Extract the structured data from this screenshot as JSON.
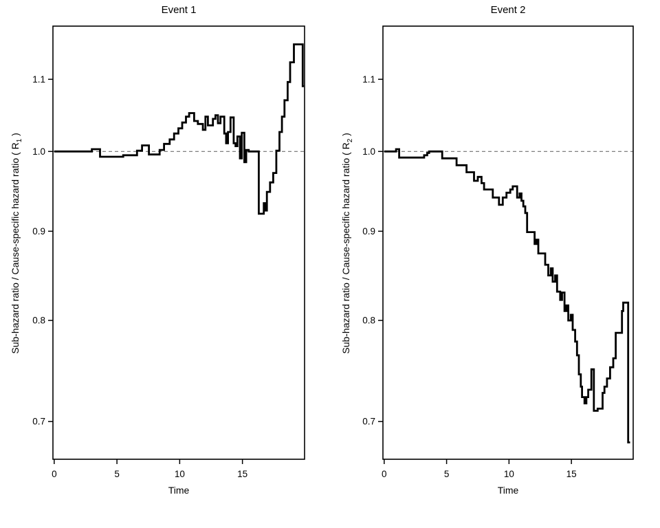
{
  "figure": {
    "background": "#ffffff",
    "curve_color": "#000000",
    "axis_color": "#000000",
    "reference_line_color": "#6e6e6e"
  },
  "chart_data": [
    {
      "type": "line",
      "step": true,
      "title": "Event 1",
      "xlabel": "Time",
      "ylabel": "Sub-hazard ratio / Cause-specific hazard ratio ( R1 )",
      "ylabel_parts": {
        "prefix": "Sub-hazard ratio / Cause-specific hazard ratio ( R",
        "sub": "1",
        "suffix": " )"
      },
      "yscale": "log",
      "grid": false,
      "legend": null,
      "xlim": [
        -0.1,
        19.95
      ],
      "ylim": [
        0.666,
        1.18
      ],
      "xticks": [
        0,
        5,
        10,
        15
      ],
      "yticks": [
        0.7,
        0.8,
        0.9,
        1.0,
        1.1
      ],
      "reference_y": 1.0,
      "x_end": 19.9,
      "points": [
        [
          0,
          1.0
        ],
        [
          3.0,
          1.003
        ],
        [
          3.65,
          0.993
        ],
        [
          5.5,
          0.995
        ],
        [
          6.6,
          1.001
        ],
        [
          7.0,
          1.008
        ],
        [
          7.55,
          0.996
        ],
        [
          8.4,
          1.002
        ],
        [
          8.75,
          1.01
        ],
        [
          9.2,
          1.016
        ],
        [
          9.55,
          1.024
        ],
        [
          9.9,
          1.031
        ],
        [
          10.2,
          1.039
        ],
        [
          10.5,
          1.047
        ],
        [
          10.75,
          1.052
        ],
        [
          11.15,
          1.041
        ],
        [
          11.45,
          1.037
        ],
        [
          11.85,
          1.029
        ],
        [
          12.05,
          1.047
        ],
        [
          12.25,
          1.035
        ],
        [
          12.65,
          1.044
        ],
        [
          12.85,
          1.049
        ],
        [
          13.05,
          1.038
        ],
        [
          13.25,
          1.047
        ],
        [
          13.55,
          1.024
        ],
        [
          13.7,
          1.011
        ],
        [
          13.85,
          1.026
        ],
        [
          14.05,
          1.046
        ],
        [
          14.3,
          1.011
        ],
        [
          14.45,
          1.007
        ],
        [
          14.6,
          1.02
        ],
        [
          14.8,
          0.991
        ],
        [
          14.95,
          1.025
        ],
        [
          15.15,
          0.986
        ],
        [
          15.3,
          1.002
        ],
        [
          15.5,
          1.0
        ],
        [
          16.3,
          0.921
        ],
        [
          16.7,
          0.934
        ],
        [
          16.85,
          0.925
        ],
        [
          16.95,
          0.948
        ],
        [
          17.2,
          0.96
        ],
        [
          17.45,
          0.972
        ],
        [
          17.7,
          1.001
        ],
        [
          17.95,
          1.026
        ],
        [
          18.15,
          1.047
        ],
        [
          18.35,
          1.07
        ],
        [
          18.6,
          1.096
        ],
        [
          18.8,
          1.125
        ],
        [
          19.1,
          1.152
        ],
        [
          19.8,
          1.09
        ]
      ]
    },
    {
      "type": "line",
      "step": true,
      "title": "Event 2",
      "xlabel": "Time",
      "ylabel": "Sub-hazard ratio / Cause-specific hazard ratio ( R2 )",
      "ylabel_parts": {
        "prefix": "Sub-hazard ratio / Cause-specific hazard ratio ( R",
        "sub": "2",
        "suffix": " )"
      },
      "yscale": "log",
      "grid": false,
      "legend": null,
      "xlim": [
        -0.1,
        19.95
      ],
      "ylim": [
        0.666,
        1.18
      ],
      "xticks": [
        0,
        5,
        10,
        15
      ],
      "yticks": [
        0.7,
        0.8,
        0.9,
        1.0,
        1.1
      ],
      "reference_y": 1.0,
      "x_end": 19.7,
      "points": [
        [
          0,
          1.0
        ],
        [
          0.95,
          1.003
        ],
        [
          1.2,
          0.992
        ],
        [
          3.2,
          0.995
        ],
        [
          3.45,
          0.998
        ],
        [
          3.6,
          1.0
        ],
        [
          4.65,
          0.991
        ],
        [
          5.8,
          0.982
        ],
        [
          6.6,
          0.973
        ],
        [
          7.2,
          0.962
        ],
        [
          7.5,
          0.967
        ],
        [
          7.8,
          0.959
        ],
        [
          8.0,
          0.951
        ],
        [
          8.7,
          0.941
        ],
        [
          9.2,
          0.932
        ],
        [
          9.5,
          0.941
        ],
        [
          9.8,
          0.947
        ],
        [
          10.1,
          0.951
        ],
        [
          10.3,
          0.955
        ],
        [
          10.65,
          0.941
        ],
        [
          10.85,
          0.946
        ],
        [
          11.0,
          0.937
        ],
        [
          11.15,
          0.93
        ],
        [
          11.3,
          0.922
        ],
        [
          11.45,
          0.899
        ],
        [
          12.05,
          0.885
        ],
        [
          12.2,
          0.89
        ],
        [
          12.35,
          0.874
        ],
        [
          12.9,
          0.861
        ],
        [
          13.15,
          0.849
        ],
        [
          13.35,
          0.857
        ],
        [
          13.5,
          0.842
        ],
        [
          13.7,
          0.849
        ],
        [
          13.85,
          0.831
        ],
        [
          14.1,
          0.822
        ],
        [
          14.25,
          0.83
        ],
        [
          14.45,
          0.81
        ],
        [
          14.6,
          0.816
        ],
        [
          14.75,
          0.8
        ],
        [
          14.95,
          0.806
        ],
        [
          15.1,
          0.79
        ],
        [
          15.3,
          0.778
        ],
        [
          15.45,
          0.764
        ],
        [
          15.6,
          0.745
        ],
        [
          15.75,
          0.733
        ],
        [
          15.85,
          0.723
        ],
        [
          16.05,
          0.717
        ],
        [
          16.2,
          0.723
        ],
        [
          16.35,
          0.73
        ],
        [
          16.6,
          0.75
        ],
        [
          16.8,
          0.71
        ],
        [
          17.1,
          0.712
        ],
        [
          17.5,
          0.727
        ],
        [
          17.65,
          0.733
        ],
        [
          17.85,
          0.741
        ],
        [
          18.1,
          0.752
        ],
        [
          18.35,
          0.761
        ],
        [
          18.55,
          0.787
        ],
        [
          19.05,
          0.81
        ],
        [
          19.15,
          0.819
        ],
        [
          19.55,
          0.681
        ]
      ]
    }
  ]
}
